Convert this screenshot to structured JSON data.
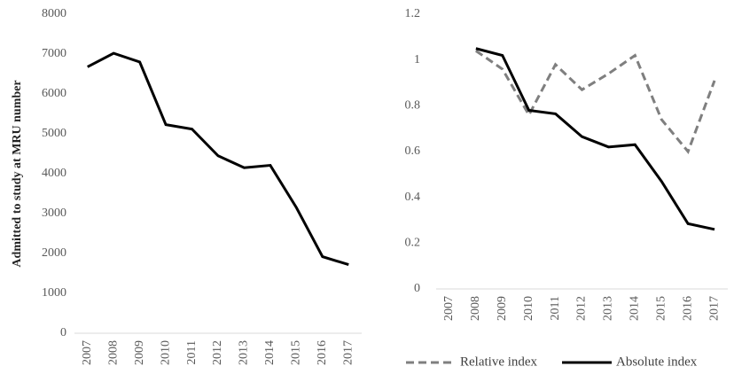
{
  "chart_data": [
    {
      "type": "line",
      "y_label": "Admitted to study at MRU number",
      "categories": [
        "2007",
        "2008",
        "2009",
        "2010",
        "2011",
        "2012",
        "2013",
        "2014",
        "2015",
        "2016",
        "2017"
      ],
      "series": [
        {
          "name": null,
          "color": "#000000",
          "dash": false,
          "values": [
            6680,
            7020,
            6800,
            5230,
            5120,
            4450,
            4150,
            4210,
            3150,
            1920,
            1720
          ]
        }
      ],
      "ylim": [
        0,
        8000
      ],
      "yticks": [
        0,
        1000,
        2000,
        3000,
        4000,
        5000,
        6000,
        7000,
        8000
      ]
    },
    {
      "type": "line",
      "categories": [
        "2007",
        "2008",
        "2009",
        "2010",
        "2011",
        "2012",
        "2013",
        "2014",
        "2015",
        "2016",
        "2017"
      ],
      "series": [
        {
          "name": "Relative index",
          "color": "#7f7f7f",
          "dash": true,
          "values": [
            null,
            1.04,
            0.96,
            0.76,
            0.98,
            0.87,
            0.94,
            1.02,
            0.74,
            0.6,
            0.91
          ]
        },
        {
          "name": "Absolute index",
          "color": "#000000",
          "dash": false,
          "values": [
            null,
            1.05,
            1.02,
            0.78,
            0.765,
            0.665,
            0.62,
            0.63,
            0.47,
            0.285,
            0.26
          ]
        }
      ],
      "ylim": [
        0,
        1.2
      ],
      "yticks": [
        0,
        0.2,
        0.4,
        0.6,
        0.8,
        1,
        1.2
      ],
      "legend": "bottom"
    }
  ]
}
